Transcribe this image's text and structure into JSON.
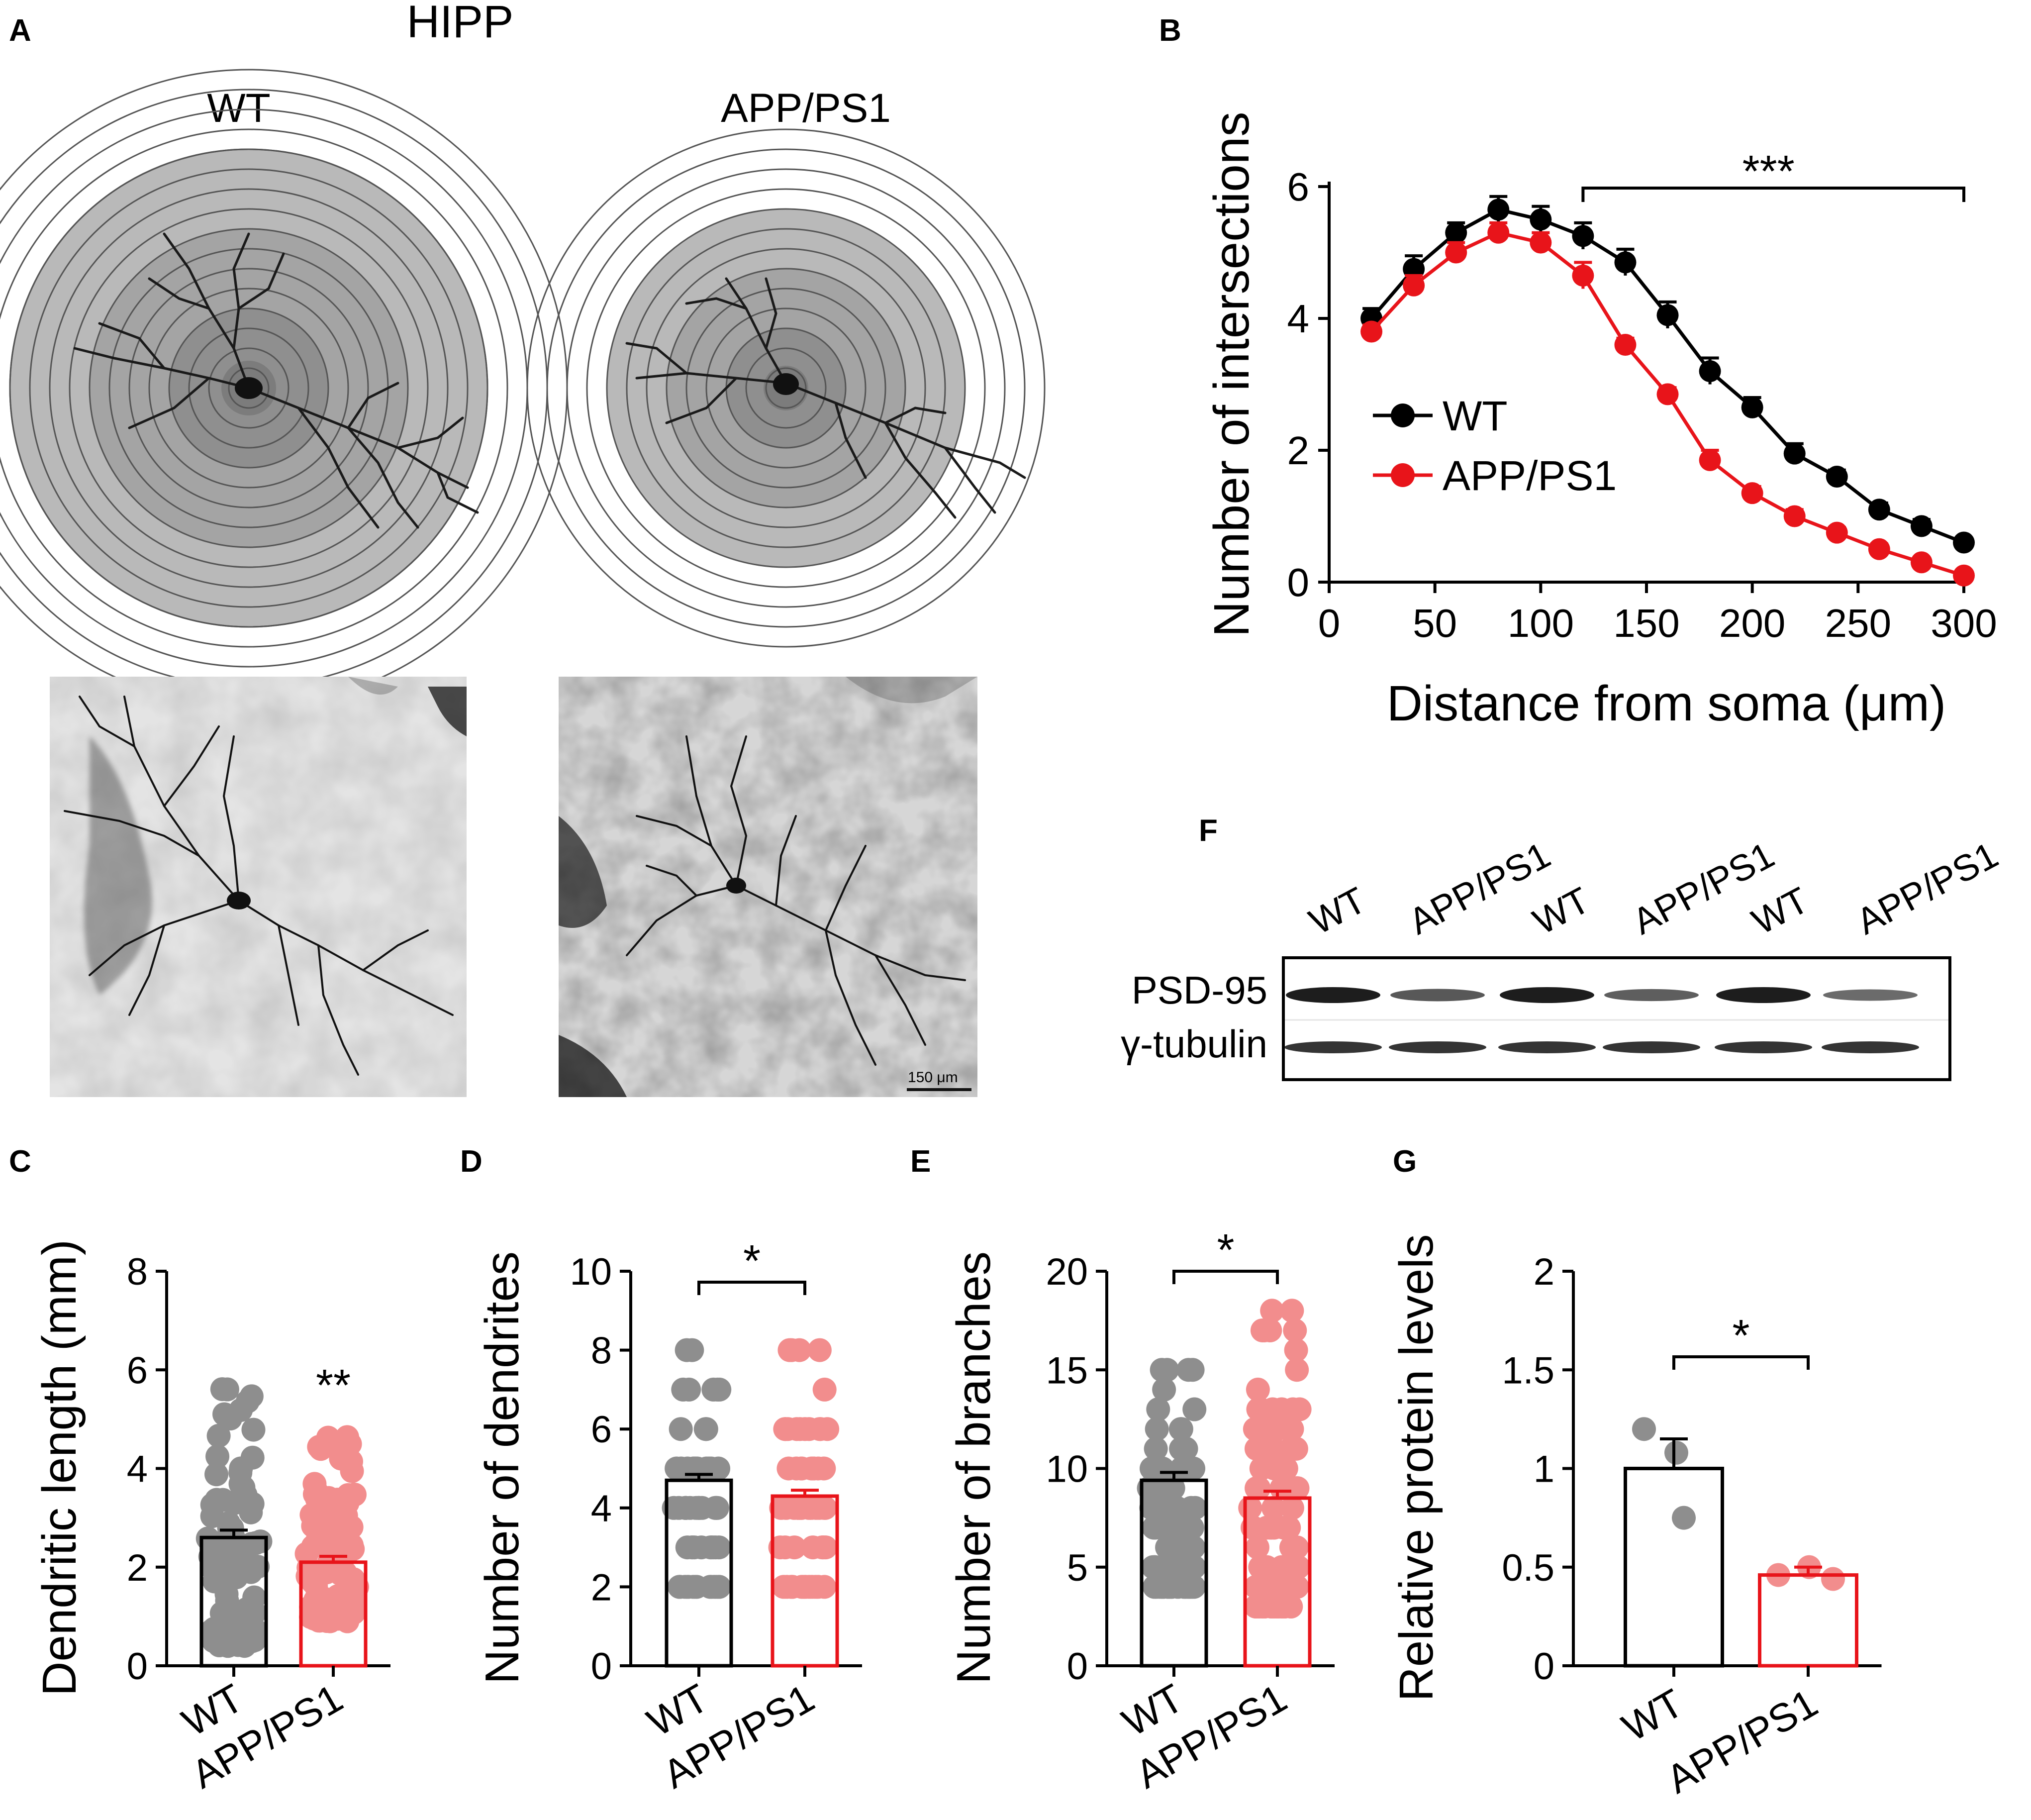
{
  "panels": {
    "A": {
      "letter": "A",
      "title": "HIPP",
      "groups": [
        "WT",
        "APP/PS1"
      ],
      "scale_bar": "150 μm"
    },
    "B": {
      "letter": "B"
    },
    "C": {
      "letter": "C"
    },
    "D": {
      "letter": "D"
    },
    "E": {
      "letter": "E"
    },
    "F": {
      "letter": "F",
      "lanes": [
        "WT",
        "APP/PS1",
        "WT",
        "APP/PS1",
        "WT",
        "APP/PS1"
      ],
      "rows": [
        "PSD-95",
        "γ-tubulin"
      ]
    },
    "G": {
      "letter": "G"
    }
  },
  "colors": {
    "wt": "#000000",
    "app": "#e8141a",
    "wt_dots": "#8e8e8e",
    "app_dots": "#f28d8d"
  },
  "chart_data": [
    {
      "id": "B",
      "type": "line",
      "xlabel": "Distance from soma (μm)",
      "ylabel": "Number of intersections",
      "xlim": [
        0,
        300
      ],
      "ylim": [
        0,
        6
      ],
      "xticks": [
        0,
        50,
        100,
        150,
        200,
        250,
        300
      ],
      "yticks": [
        0,
        2,
        4,
        6
      ],
      "x": [
        20,
        40,
        60,
        80,
        100,
        120,
        140,
        160,
        180,
        200,
        220,
        240,
        260,
        280,
        300
      ],
      "series": [
        {
          "name": "WT",
          "values": [
            4.0,
            4.75,
            5.3,
            5.65,
            5.5,
            5.25,
            4.85,
            4.05,
            3.2,
            2.65,
            1.95,
            1.6,
            1.1,
            0.85,
            0.6
          ],
          "err": [
            0.15,
            0.2,
            0.15,
            0.2,
            0.2,
            0.2,
            0.2,
            0.2,
            0.2,
            0.15,
            0.15,
            0.1,
            0.1,
            0.1,
            0.05
          ]
        },
        {
          "name": "APP/PS1",
          "values": [
            3.8,
            4.5,
            5.0,
            5.3,
            5.15,
            4.65,
            3.6,
            2.85,
            1.85,
            1.35,
            1.0,
            0.75,
            0.5,
            0.3,
            0.1
          ],
          "err": [
            0.1,
            0.15,
            0.15,
            0.15,
            0.15,
            0.2,
            0.1,
            0.1,
            0.15,
            0.1,
            0.1,
            0.08,
            0.08,
            0.05,
            0.05
          ]
        }
      ],
      "significance": "***",
      "sig_range": [
        120,
        300
      ]
    },
    {
      "id": "C",
      "type": "bar",
      "ylabel": "Dendritic length (mm)",
      "ylim": [
        0,
        8
      ],
      "yticks": [
        0,
        2,
        4,
        6,
        8
      ],
      "categories": [
        "WT",
        "APP/PS1"
      ],
      "values": [
        2.6,
        2.1
      ],
      "err": [
        0.15,
        0.12
      ],
      "significance": "**"
    },
    {
      "id": "D",
      "type": "bar",
      "ylabel": "Number of dendrites",
      "ylim": [
        0,
        10
      ],
      "yticks": [
        0,
        2,
        4,
        6,
        8,
        10
      ],
      "categories": [
        "WT",
        "APP/PS1"
      ],
      "values": [
        4.7,
        4.3
      ],
      "err": [
        0.15,
        0.15
      ],
      "significance": "*"
    },
    {
      "id": "E",
      "type": "bar",
      "ylabel": "Number of branches",
      "ylim": [
        0,
        20
      ],
      "yticks": [
        0,
        5,
        10,
        15,
        20
      ],
      "categories": [
        "WT",
        "APP/PS1"
      ],
      "values": [
        9.4,
        8.5
      ],
      "err": [
        0.4,
        0.35
      ],
      "significance": "*"
    },
    {
      "id": "G",
      "type": "bar",
      "ylabel": "Relative protein levels",
      "ylim": [
        0,
        2
      ],
      "yticks": [
        "0",
        "0.5",
        "1",
        "1.5",
        "2"
      ],
      "categories": [
        "WT",
        "APP/PS1"
      ],
      "values": [
        1.0,
        0.46
      ],
      "err": [
        0.15,
        0.04
      ],
      "points": [
        [
          1.2,
          1.08,
          0.75
        ],
        [
          0.46,
          0.5,
          0.44
        ]
      ],
      "significance": "*"
    }
  ]
}
